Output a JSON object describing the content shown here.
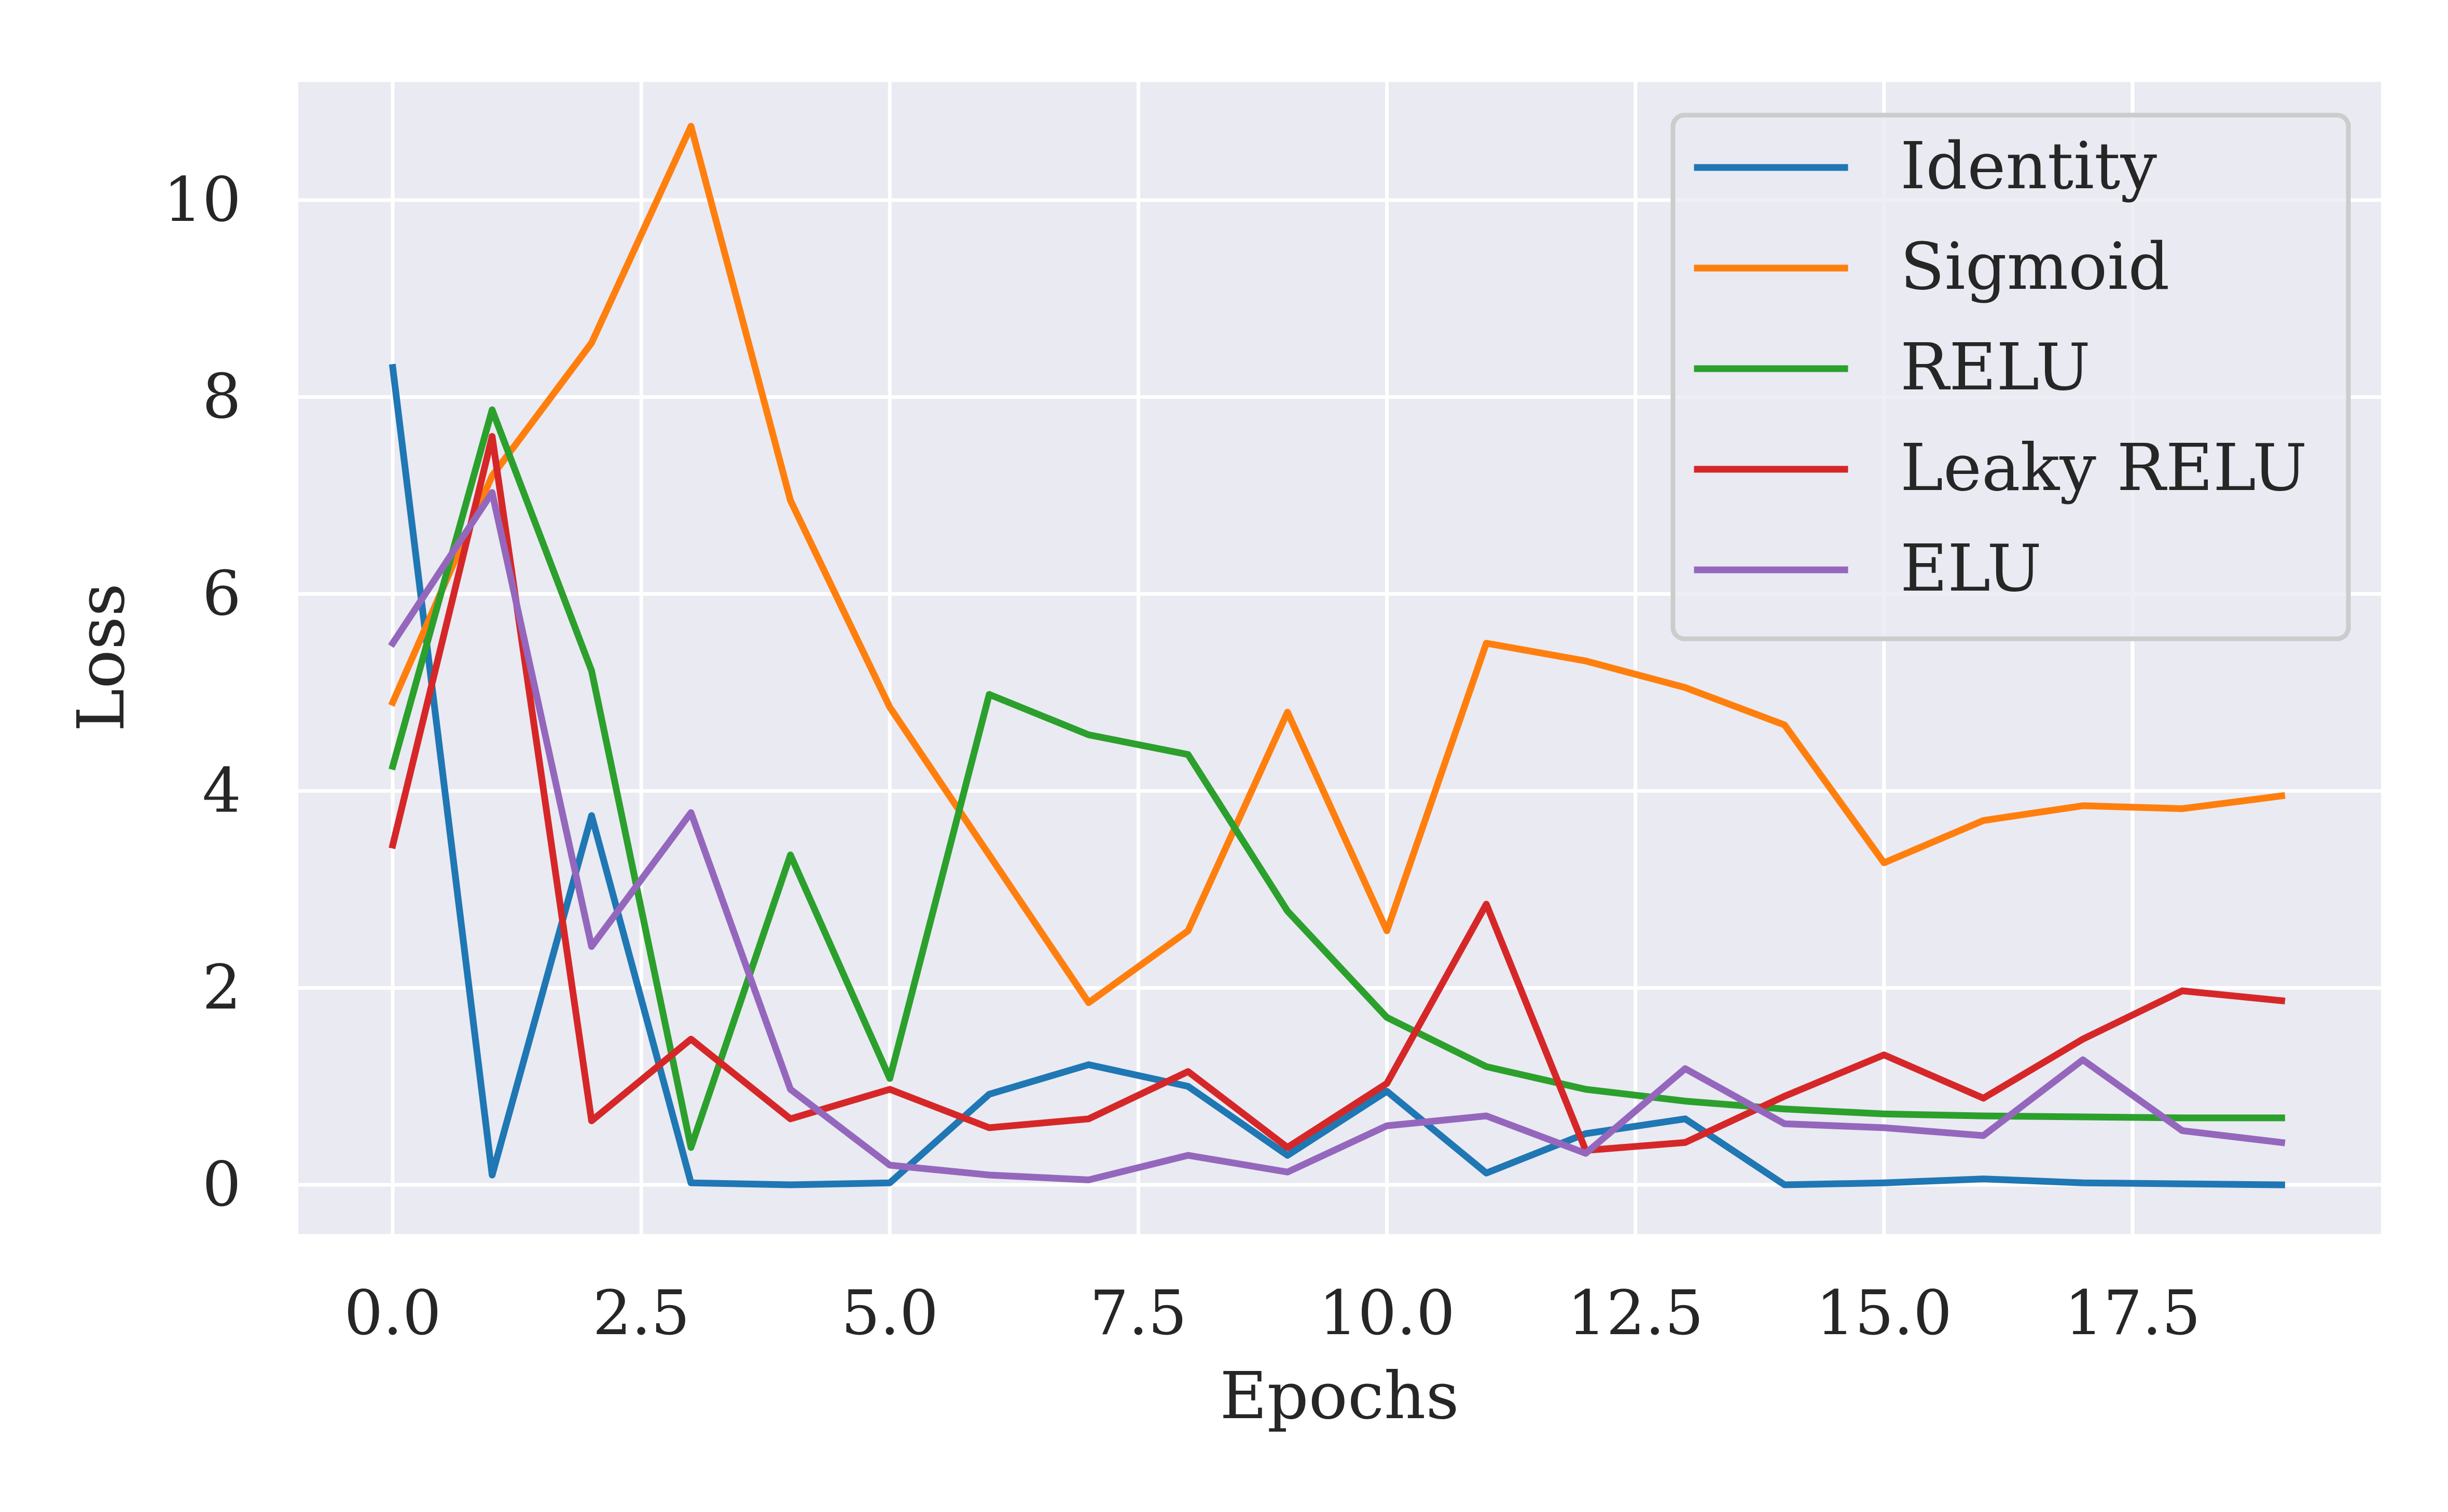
{
  "chart_data": {
    "type": "line",
    "title": "",
    "xlabel": "Epochs",
    "ylabel": "Loss",
    "xlim": [
      -0.95,
      20.0
    ],
    "ylim": [
      -0.5,
      11.2
    ],
    "xticks": [
      "0.0",
      "2.5",
      "5.0",
      "7.5",
      "10.0",
      "12.5",
      "15.0",
      "17.5"
    ],
    "yticks": [
      "0",
      "2",
      "4",
      "6",
      "8",
      "10"
    ],
    "grid": true,
    "legend_position": "top-right",
    "x": [
      0,
      1,
      2,
      3,
      4,
      5,
      6,
      7,
      8,
      9,
      10,
      11,
      12,
      13,
      14,
      15,
      16,
      17,
      18,
      19
    ],
    "series": [
      {
        "name": "Identity",
        "color": "#1f77b4",
        "values": [
          8.3,
          0.1,
          3.75,
          0.02,
          0.0,
          0.02,
          0.92,
          1.22,
          1.0,
          0.3,
          0.95,
          0.12,
          0.52,
          0.67,
          0.0,
          0.02,
          0.06,
          0.02,
          0.01,
          0.0
        ]
      },
      {
        "name": "Sigmoid",
        "color": "#ff7f0e",
        "values": [
          4.9,
          7.2,
          8.55,
          10.75,
          6.95,
          4.85,
          3.35,
          1.85,
          2.58,
          4.8,
          2.58,
          5.5,
          5.32,
          5.05,
          4.67,
          3.27,
          3.7,
          3.85,
          3.82,
          3.95
        ]
      },
      {
        "name": "RELU",
        "color": "#2ca02c",
        "values": [
          4.25,
          7.87,
          5.22,
          0.38,
          3.35,
          1.08,
          4.98,
          4.57,
          4.37,
          2.78,
          1.7,
          1.2,
          0.97,
          0.85,
          0.77,
          0.72,
          0.7,
          0.69,
          0.68,
          0.68
        ]
      },
      {
        "name": "Leaky RELU",
        "color": "#d62728",
        "values": [
          3.45,
          7.6,
          0.65,
          1.48,
          0.67,
          0.97,
          0.58,
          0.67,
          1.15,
          0.38,
          1.03,
          2.85,
          0.35,
          0.43,
          0.9,
          1.32,
          0.88,
          1.48,
          1.97,
          1.87
        ]
      },
      {
        "name": "ELU",
        "color": "#9467bd",
        "values": [
          5.5,
          7.03,
          2.42,
          3.78,
          0.97,
          0.2,
          0.1,
          0.05,
          0.3,
          0.13,
          0.6,
          0.7,
          0.32,
          1.18,
          0.62,
          0.58,
          0.5,
          1.27,
          0.55,
          0.43
        ]
      }
    ]
  }
}
